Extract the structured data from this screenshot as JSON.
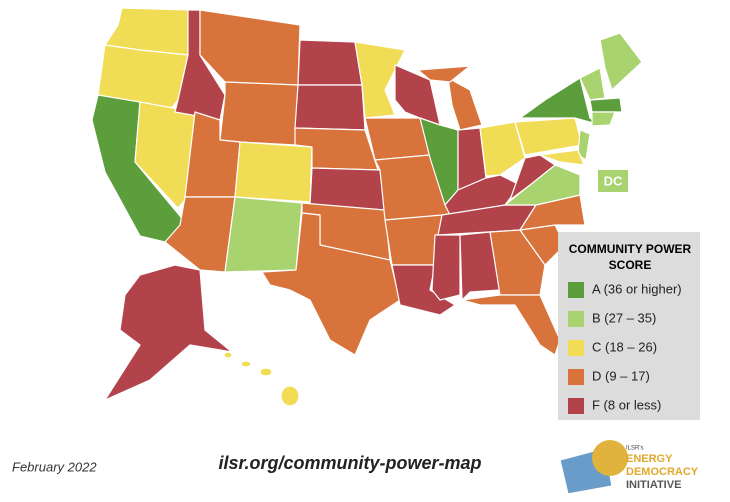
{
  "map": {
    "dc_label": "DC"
  },
  "legend": {
    "title_lines": [
      "COMMUNITY POWER",
      "SCORE"
    ],
    "items": [
      {
        "label": "A (36 or higher)",
        "color": "#5b9e3b"
      },
      {
        "label": "B (27 – 35)",
        "color": "#a9d36e"
      },
      {
        "label": "C (18 – 26)",
        "color": "#f1dc56"
      },
      {
        "label": "D (9 – 17)",
        "color": "#d8733b"
      },
      {
        "label": "F (8 or less)",
        "color": "#b3434a"
      }
    ]
  },
  "footer": {
    "date": "February 2022",
    "url": "ilsr.org/community-power-map",
    "logo": {
      "small": "ILSR's",
      "lines": [
        "ENERGY",
        "DEMOCRACY",
        "INITIATIVE"
      ]
    }
  }
}
